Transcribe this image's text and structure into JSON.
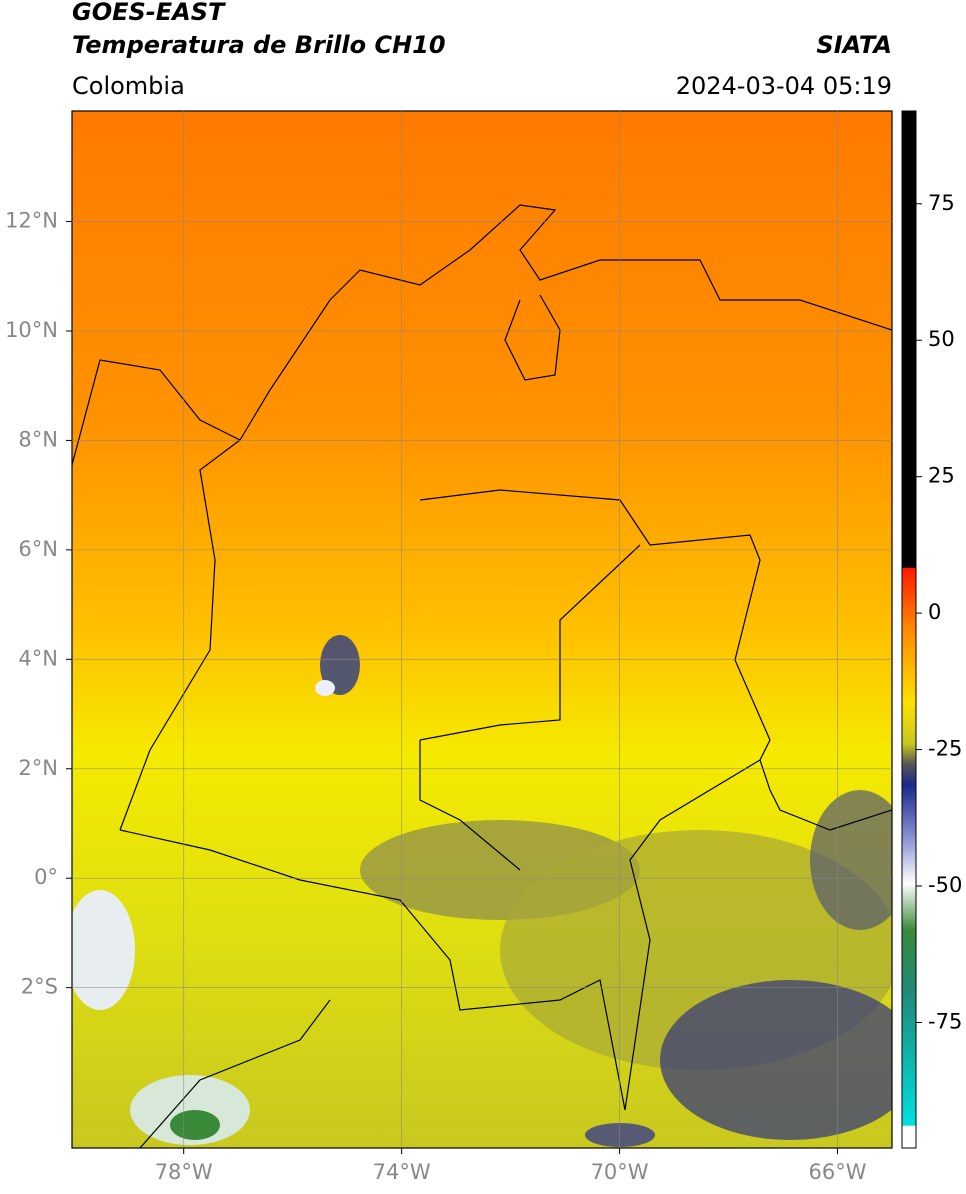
{
  "header": {
    "satellite": "GOES-EAST",
    "product": "Temperatura de Brillo CH10",
    "region": "Colombia",
    "source": "SIATA",
    "timestamp": "2024-03-04 05:19"
  },
  "map": {
    "lonlim": [
      -80.05,
      -65
    ],
    "latlim": [
      -4.93,
      14.02
    ],
    "lonticks": [
      {
        "value": -78,
        "label": "78°W"
      },
      {
        "value": -74,
        "label": "74°W"
      },
      {
        "value": -70,
        "label": "70°W"
      },
      {
        "value": -66,
        "label": "66°W"
      }
    ],
    "latticks": [
      {
        "value": 12,
        "label": "12°N"
      },
      {
        "value": 10,
        "label": "10°N"
      },
      {
        "value": 8,
        "label": "8°N"
      },
      {
        "value": 6,
        "label": "6°N"
      },
      {
        "value": 4,
        "label": "4°N"
      },
      {
        "value": 2,
        "label": "2°N"
      },
      {
        "value": 0,
        "label": "0°"
      },
      {
        "value": -2,
        "label": "2°S"
      }
    ],
    "grid": true
  },
  "colorbar": {
    "lim": [
      -98,
      92
    ],
    "ticks": [
      75,
      50,
      25,
      0,
      -25,
      -50,
      -75
    ]
  }
}
